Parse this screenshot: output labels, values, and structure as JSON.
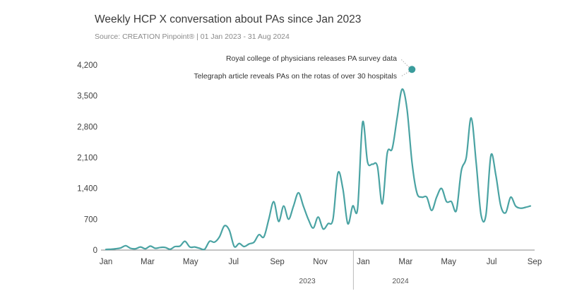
{
  "title": "Weekly HCP X conversation about PAs since Jan 2023",
  "subtitle": "Source: CREATION Pinpoint® | 01 Jan 2023 - 31 Aug 2024",
  "colors": {
    "line": "#4aa3a3",
    "marker": "#3a9c9c",
    "axis": "#888888"
  },
  "chart_data": {
    "type": "line",
    "title": "Weekly HCP X conversation about PAs since Jan 2023",
    "subtitle": "Source: CREATION Pinpoint® | 01 Jan 2023 - 31 Aug 2024",
    "xlabel": "",
    "ylabel": "",
    "ylim": [
      0,
      4200
    ],
    "yticks": [
      0,
      700,
      1400,
      2100,
      2800,
      3500,
      4200
    ],
    "ytick_labels": [
      "0",
      "700",
      "1,400",
      "2,100",
      "2,800",
      "3,500",
      "4,200"
    ],
    "xlim": [
      "2023-01-01",
      "2024-08-31"
    ],
    "xtick_labels": [
      "Jan",
      "Mar",
      "May",
      "Jul",
      "Sep",
      "Nov",
      "Jan",
      "Mar",
      "May",
      "Jul",
      "Sep"
    ],
    "year_labels": [
      "2023",
      "2024"
    ],
    "grid": false,
    "legend": "none",
    "series": [
      {
        "x": [
          "2023-01-01",
          "2023-01-08",
          "2023-01-15",
          "2023-01-22",
          "2023-01-29",
          "2023-02-05",
          "2023-02-12",
          "2023-02-19",
          "2023-02-26",
          "2023-03-05",
          "2023-03-12",
          "2023-03-19",
          "2023-03-26",
          "2023-04-02",
          "2023-04-09",
          "2023-04-16",
          "2023-04-23",
          "2023-04-30",
          "2023-05-07",
          "2023-05-14",
          "2023-05-21",
          "2023-05-28",
          "2023-06-04",
          "2023-06-11",
          "2023-06-18",
          "2023-06-25",
          "2023-07-02",
          "2023-07-09",
          "2023-07-16",
          "2023-07-23",
          "2023-07-30",
          "2023-08-06",
          "2023-08-13",
          "2023-08-20",
          "2023-08-27",
          "2023-09-03",
          "2023-09-10",
          "2023-09-17",
          "2023-09-24",
          "2023-10-01",
          "2023-10-08",
          "2023-10-15",
          "2023-10-22",
          "2023-10-29",
          "2023-11-05",
          "2023-11-12",
          "2023-11-19",
          "2023-11-26",
          "2023-12-03",
          "2023-12-10",
          "2023-12-17",
          "2023-12-24",
          "2023-12-31",
          "2024-01-07",
          "2024-01-14",
          "2024-01-21",
          "2024-01-28",
          "2024-02-04",
          "2024-02-11",
          "2024-02-18",
          "2024-02-25",
          "2024-03-03",
          "2024-03-10",
          "2024-03-17",
          "2024-03-24",
          "2024-03-31",
          "2024-04-07",
          "2024-04-14",
          "2024-04-21",
          "2024-04-28",
          "2024-05-05",
          "2024-05-12",
          "2024-05-19",
          "2024-05-26",
          "2024-06-02",
          "2024-06-09",
          "2024-06-16",
          "2024-06-23",
          "2024-06-30",
          "2024-07-07",
          "2024-07-14",
          "2024-07-21",
          "2024-07-28",
          "2024-08-04",
          "2024-08-11",
          "2024-08-18",
          "2024-08-25"
        ],
        "values": [
          15,
          20,
          30,
          50,
          100,
          40,
          30,
          70,
          30,
          90,
          40,
          60,
          60,
          20,
          80,
          90,
          200,
          70,
          70,
          40,
          20,
          200,
          180,
          300,
          550,
          450,
          80,
          150,
          80,
          140,
          180,
          350,
          300,
          700,
          1100,
          650,
          1000,
          700,
          1000,
          1300,
          1000,
          700,
          500,
          750,
          480,
          600,
          700,
          1750,
          1400,
          600,
          1000,
          950,
          2900,
          2000,
          1950,
          1900,
          1050,
          2200,
          2300,
          3000,
          3650,
          3200,
          2000,
          1300,
          1200,
          1200,
          900,
          1200,
          1400,
          1100,
          1100,
          900,
          1800,
          2100,
          3000,
          2000,
          800,
          800,
          2150,
          1700,
          1000,
          850,
          1200,
          1000,
          950,
          970,
          1000
        ]
      }
    ],
    "annotations": [
      {
        "text": "Royal college of physicians releases PA survey data",
        "x": "2024-03-10",
        "y": 4100
      },
      {
        "text": "Telegraph article reveals PAs on the rotas of over 30 hospitals",
        "x": "2024-03-10",
        "y": 4100
      }
    ]
  }
}
